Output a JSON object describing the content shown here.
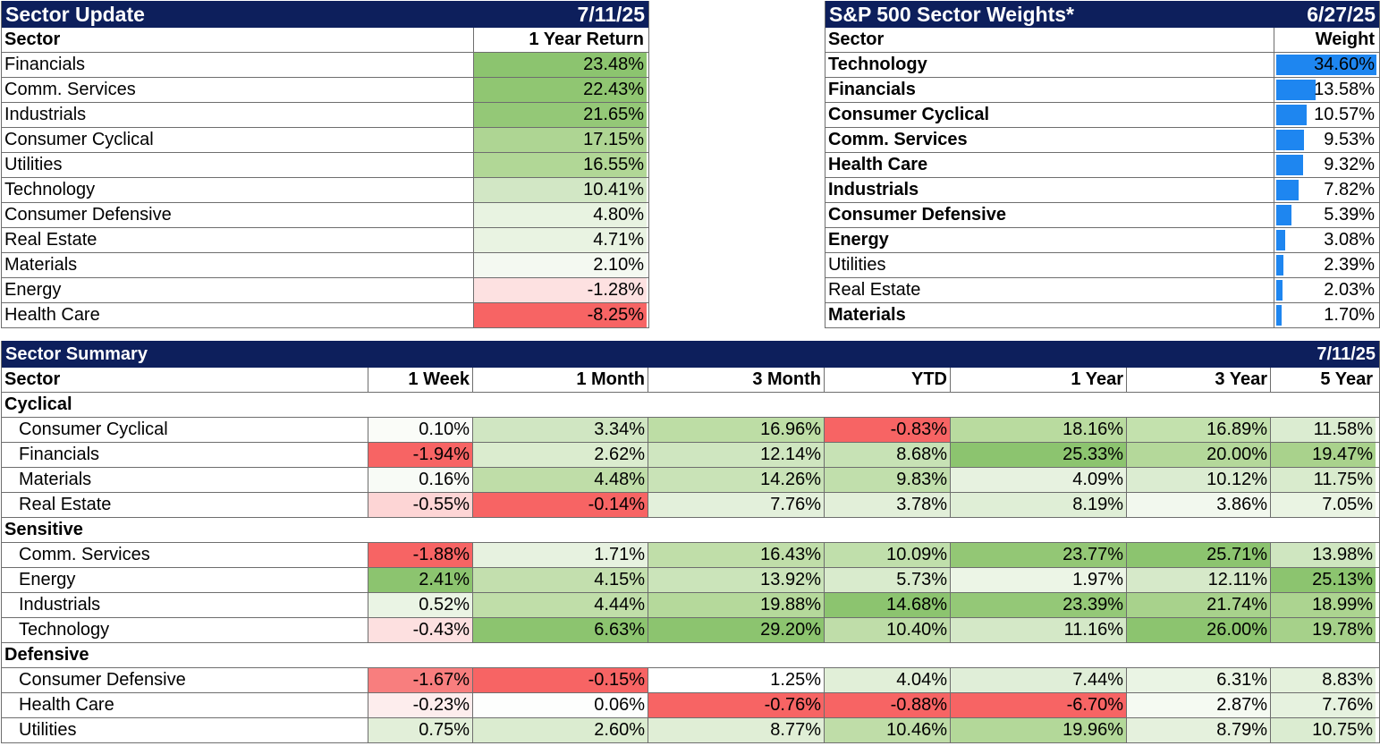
{
  "sector_update": {
    "title": "Sector Update",
    "date": "7/11/25",
    "col_sector": "Sector",
    "col_return": "1 Year Return",
    "rows": [
      {
        "sector": "Financials",
        "value": "23.48%",
        "color": "#8cc46f"
      },
      {
        "sector": "Comm. Services",
        "value": "22.43%",
        "color": "#90c672"
      },
      {
        "sector": "Industrials",
        "value": "21.65%",
        "color": "#94c877"
      },
      {
        "sector": "Consumer Cyclical",
        "value": "17.15%",
        "color": "#aed593"
      },
      {
        "sector": "Utilities",
        "value": "16.55%",
        "color": "#b1d796"
      },
      {
        "sector": "Technology",
        "value": "10.41%",
        "color": "#d2e7c5"
      },
      {
        "sector": "Consumer Defensive",
        "value": "4.80%",
        "color": "#e8f3e1"
      },
      {
        "sector": "Real Estate",
        "value": "4.71%",
        "color": "#e9f3e2"
      },
      {
        "sector": "Materials",
        "value": "2.10%",
        "color": "#f4f9f1"
      },
      {
        "sector": "Energy",
        "value": "-1.28%",
        "color": "#fde1e1"
      },
      {
        "sector": "Health Care",
        "value": "-8.25%",
        "color": "#f76464"
      }
    ]
  },
  "sector_weights": {
    "title": "S&P 500 Sector Weights*",
    "date": "6/27/25",
    "col_sector": "Sector",
    "col_weight": "Weight",
    "bar_color": "#1e86f0",
    "rows": [
      {
        "sector": "Technology",
        "value": "34.60%",
        "weight": 34.6,
        "bold": true
      },
      {
        "sector": "Financials",
        "value": "13.58%",
        "weight": 13.58,
        "bold": true
      },
      {
        "sector": "Consumer Cyclical",
        "value": "10.57%",
        "weight": 10.57,
        "bold": true
      },
      {
        "sector": "Comm. Services",
        "value": "9.53%",
        "weight": 9.53,
        "bold": true
      },
      {
        "sector": "Health Care",
        "value": "9.32%",
        "weight": 9.32,
        "bold": true
      },
      {
        "sector": "Industrials",
        "value": "7.82%",
        "weight": 7.82,
        "bold": true
      },
      {
        "sector": "Consumer Defensive",
        "value": "5.39%",
        "weight": 5.39,
        "bold": true
      },
      {
        "sector": "Energy",
        "value": "3.08%",
        "weight": 3.08,
        "bold": true
      },
      {
        "sector": "Utilities",
        "value": "2.39%",
        "weight": 2.39,
        "bold": false
      },
      {
        "sector": "Real Estate",
        "value": "2.03%",
        "weight": 2.03,
        "bold": false
      },
      {
        "sector": "Materials",
        "value": "1.70%",
        "weight": 1.7,
        "bold": true
      }
    ]
  },
  "sector_summary": {
    "title": "Sector Summary",
    "date": "7/11/25",
    "columns": [
      "Sector",
      "1 Week",
      "1 Month",
      "3 Month",
      "YTD",
      "1 Year",
      "3 Year",
      "5 Year"
    ],
    "rows": [
      {
        "group": "Cyclical"
      },
      {
        "sector": "Consumer Cyclical",
        "values": [
          "0.10%",
          "3.34%",
          "16.96%",
          "-0.83%",
          "18.16%",
          "16.89%",
          "11.58%"
        ],
        "colors": [
          "#fafcf8",
          "#d0e6c2",
          "#bddda5",
          "#f76464",
          "#b9db9f",
          "#c3e1ad",
          "#dbecd1"
        ]
      },
      {
        "sector": "Financials",
        "values": [
          "-1.94%",
          "2.62%",
          "12.14%",
          "8.68%",
          "25.33%",
          "20.00%",
          "19.47%"
        ],
        "colors": [
          "#f76464",
          "#dbeccf",
          "#cfe6c0",
          "#c7e2b5",
          "#8cc46f",
          "#b4d89a",
          "#a9d28c"
        ]
      },
      {
        "sector": "Materials",
        "values": [
          "0.16%",
          "4.48%",
          "14.26%",
          "9.83%",
          "4.09%",
          "10.12%",
          "11.75%"
        ],
        "colors": [
          "#f8fbf6",
          "#bfdda8",
          "#c9e3b7",
          "#c1dfac",
          "#e7f2e0",
          "#dbecd1",
          "#d9ebcd"
        ]
      },
      {
        "sector": "Real Estate",
        "values": [
          "-0.55%",
          "-0.14%",
          "7.76%",
          "3.78%",
          "8.19%",
          "3.86%",
          "7.05%"
        ],
        "colors": [
          "#fdd5d5",
          "#f76464",
          "#e3f0db",
          "#e2efd9",
          "#dfeed6",
          "#f2f8ee",
          "#eaf4e3"
        ]
      },
      {
        "group": "Sensitive"
      },
      {
        "sector": "Comm. Services",
        "values": [
          "-1.88%",
          "1.71%",
          "16.43%",
          "10.09%",
          "23.77%",
          "25.71%",
          "13.98%"
        ],
        "colors": [
          "#f76464",
          "#e7f2e0",
          "#c0dea9",
          "#c0dfab",
          "#93c775",
          "#8cc46f",
          "#cfe6c0"
        ]
      },
      {
        "sector": "Energy",
        "values": [
          "2.41%",
          "4.15%",
          "13.92%",
          "5.73%",
          "1.97%",
          "12.11%",
          "25.13%"
        ],
        "colors": [
          "#8cc46f",
          "#c3dfae",
          "#cbe4ba",
          "#d9ebcd",
          "#ecf5e6",
          "#d6e9c9",
          "#8cc46f"
        ]
      },
      {
        "sector": "Industrials",
        "values": [
          "0.52%",
          "4.44%",
          "19.88%",
          "14.68%",
          "23.39%",
          "21.74%",
          "18.99%"
        ],
        "colors": [
          "#eaf4e4",
          "#c0dea9",
          "#b5d99b",
          "#8cc46f",
          "#94c877",
          "#a8d28c",
          "#acd490"
        ]
      },
      {
        "sector": "Technology",
        "values": [
          "-0.43%",
          "6.63%",
          "29.20%",
          "10.40%",
          "11.16%",
          "26.00%",
          "19.78%"
        ],
        "colors": [
          "#fde0e0",
          "#8cc46f",
          "#8cc46f",
          "#bfdda9",
          "#d4e8c7",
          "#8cc46f",
          "#a6d18a"
        ]
      },
      {
        "group": "Defensive"
      },
      {
        "sector": "Consumer Defensive",
        "values": [
          "-1.67%",
          "-0.15%",
          "1.25%",
          "4.04%",
          "7.44%",
          "6.31%",
          "8.83%"
        ],
        "colors": [
          "#f87e7e",
          "#f76464",
          "#ffffff",
          "#e1efd8",
          "#e0eed8",
          "#eaf4e4",
          "#e4f1dc"
        ]
      },
      {
        "sector": "Health Care",
        "values": [
          "-0.23%",
          "0.06%",
          "-0.76%",
          "-0.88%",
          "-6.70%",
          "2.87%",
          "7.76%"
        ],
        "colors": [
          "#fdeded",
          "#fdfefd",
          "#f76464",
          "#f76464",
          "#f76464",
          "#f5faf2",
          "#e6f2df"
        ]
      },
      {
        "sector": "Utilities",
        "values": [
          "0.75%",
          "2.60%",
          "8.77%",
          "10.46%",
          "19.96%",
          "8.79%",
          "10.75%"
        ],
        "colors": [
          "#e2efd9",
          "#dbecd0",
          "#e0eed6",
          "#bfdda8",
          "#b3d899",
          "#e5f1dd",
          "#dbecd1"
        ]
      }
    ]
  }
}
